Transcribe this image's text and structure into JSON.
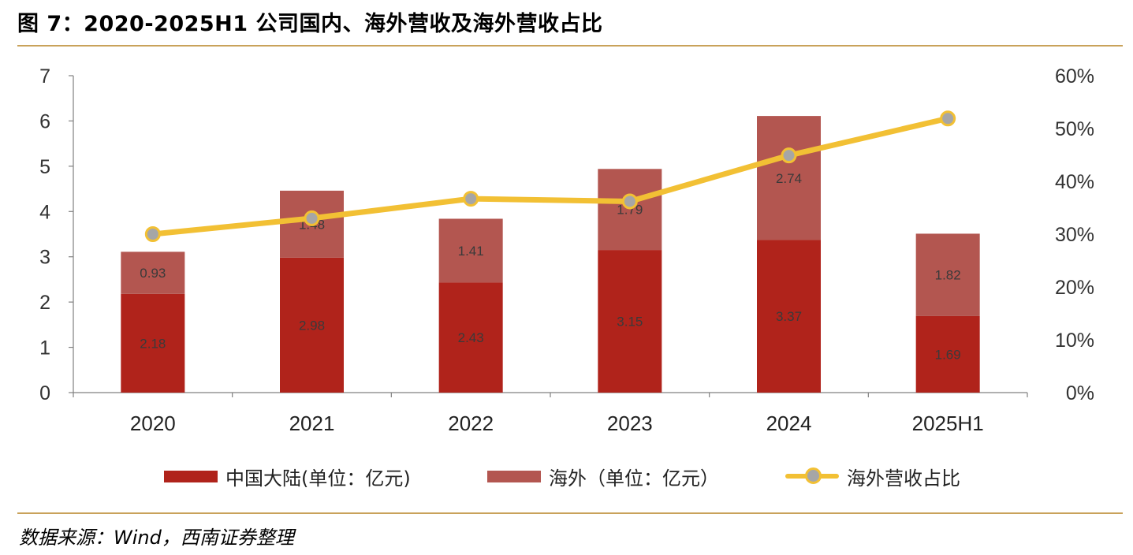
{
  "title": "图 7：2020-2025H1 公司国内、海外营收及海外营收占比",
  "source": "数据来源：Wind，西南证券整理",
  "colors": {
    "domestic": "#B0231B",
    "overseas": "#B35650",
    "ratio_line": "#F2C034",
    "ratio_marker": "#A6A6A6",
    "rule": "#C9A25A",
    "axis": "#808080"
  },
  "legend": {
    "domestic": "中国大陆(单位：亿元)",
    "overseas": "海外（单位：亿元）",
    "ratio": "海外营收占比"
  },
  "chart_data": {
    "type": "bar",
    "stacked": true,
    "categories": [
      "2020",
      "2021",
      "2022",
      "2023",
      "2024",
      "2025H1"
    ],
    "series": [
      {
        "name": "中国大陆(单位：亿元)",
        "axis": "left",
        "values": [
          2.18,
          2.98,
          2.43,
          3.15,
          3.37,
          1.69
        ]
      },
      {
        "name": "海外（单位：亿元）",
        "axis": "left",
        "values": [
          0.93,
          1.48,
          1.41,
          1.79,
          2.74,
          1.82
        ]
      },
      {
        "name": "海外营收占比",
        "axis": "right",
        "type": "line",
        "values": [
          0.3,
          0.33,
          0.367,
          0.362,
          0.449,
          0.519
        ]
      }
    ],
    "ylim": [
      0,
      7
    ],
    "yticks": [
      "0",
      "1",
      "2",
      "3",
      "4",
      "5",
      "6",
      "7"
    ],
    "y2lim": [
      0,
      0.6
    ],
    "y2ticks": [
      "0%",
      "10%",
      "20%",
      "30%",
      "40%",
      "50%",
      "60%"
    ],
    "data_labels": {
      "domestic": [
        "2.18",
        "2.98",
        "2.43",
        "3.15",
        "3.37",
        "1.69"
      ],
      "overseas": [
        "0.93",
        "1.48",
        "1.41",
        "1.79",
        "2.74",
        "1.82"
      ]
    },
    "legend_position": "bottom"
  }
}
